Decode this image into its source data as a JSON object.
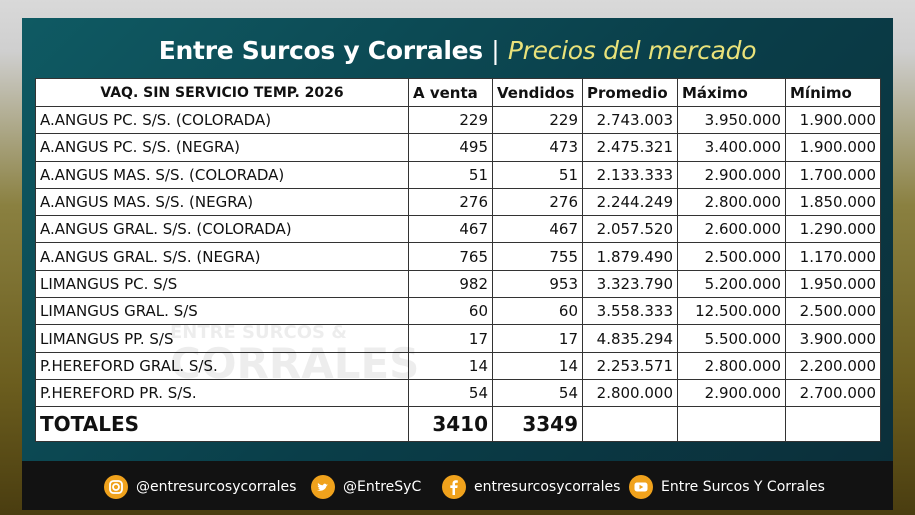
{
  "header": {
    "title_main": "Entre Surcos y Corrales",
    "separator": "|",
    "title_sub": "Precios del mercado"
  },
  "watermark": [
    "ENTRE SURCOS &",
    "CORRALES"
  ],
  "table": {
    "columns": [
      "VAQ. SIN SERVICIO  TEMP. 2026",
      "A venta",
      "Vendidos",
      "Promedio",
      "Máximo",
      "Mínimo"
    ],
    "rows": [
      [
        "A.ANGUS PC. S/S. (COLORADA)",
        229,
        229,
        "2.743.003",
        "3.950.000",
        "1.900.000"
      ],
      [
        "A.ANGUS PC. S/S. (NEGRA)",
        495,
        473,
        "2.475.321",
        "3.400.000",
        "1.900.000"
      ],
      [
        "A.ANGUS MAS. S/S. (COLORADA)",
        51,
        51,
        "2.133.333",
        "2.900.000",
        "1.700.000"
      ],
      [
        "A.ANGUS MAS. S/S. (NEGRA)",
        276,
        276,
        "2.244.249",
        "2.800.000",
        "1.850.000"
      ],
      [
        "A.ANGUS GRAL. S/S. (COLORADA)",
        467,
        467,
        "2.057.520",
        "2.600.000",
        "1.290.000"
      ],
      [
        "A.ANGUS GRAL. S/S. (NEGRA)",
        765,
        755,
        "1.879.490",
        "2.500.000",
        "1.170.000"
      ],
      [
        "LIMANGUS PC. S/S",
        982,
        953,
        "3.323.790",
        "5.200.000",
        "1.950.000"
      ],
      [
        "LIMANGUS GRAL. S/S",
        60,
        60,
        "3.558.333",
        "12.500.000",
        "2.500.000"
      ],
      [
        "LIMANGUS PP. S/S",
        17,
        17,
        "4.835.294",
        "5.500.000",
        "3.900.000"
      ],
      [
        "P.HEREFORD GRAL. S/S.",
        14,
        14,
        "2.253.571",
        "2.800.000",
        "2.200.000"
      ],
      [
        "P.HEREFORD PR. S/S.",
        54,
        54,
        "2.800.000",
        "2.900.000",
        "2.700.000"
      ]
    ],
    "totals": [
      "TOTALES",
      3410,
      3349
    ]
  },
  "footer": [
    "@entresurcosycorrales",
    "@EntreSyC",
    "entresurcosycorrales",
    "Entre Surcos Y Corrales"
  ]
}
